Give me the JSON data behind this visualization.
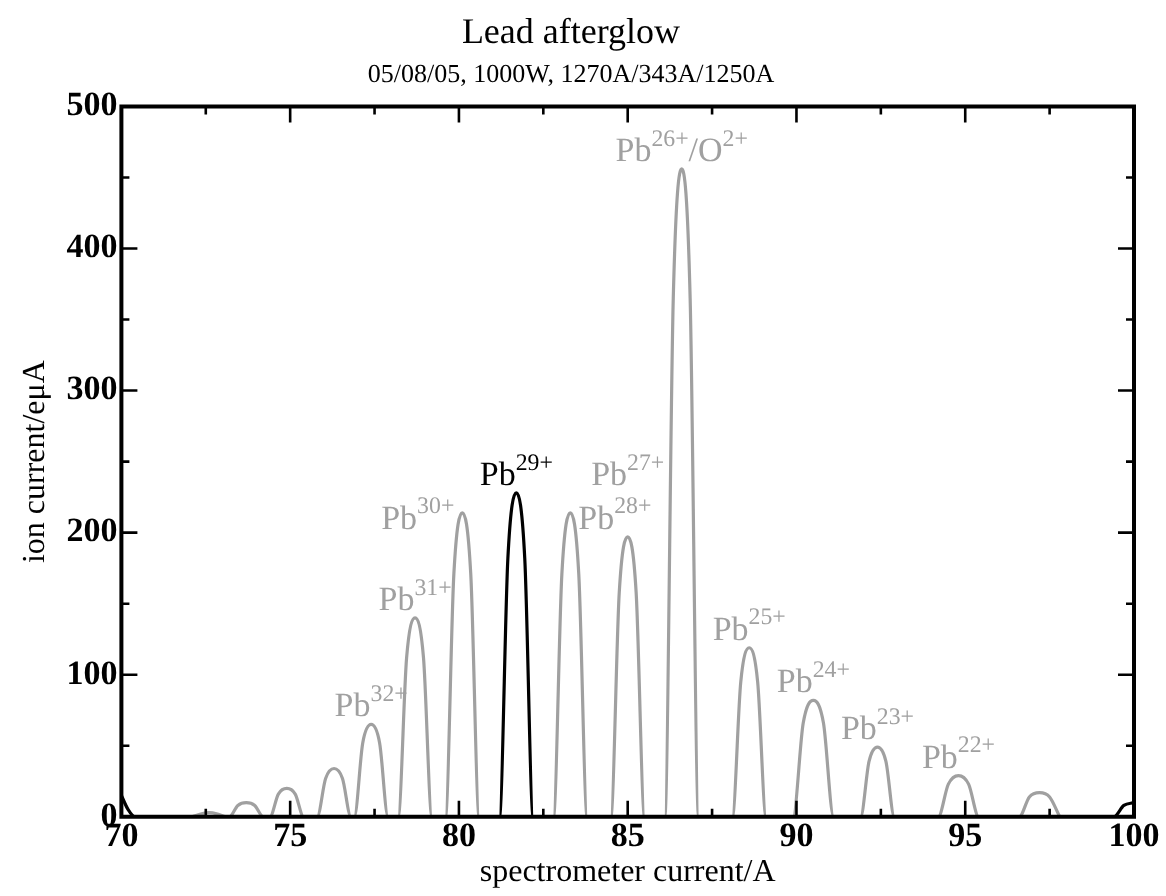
{
  "chart_data": {
    "type": "line",
    "title": "Lead afterglow",
    "subtitle": "05/08/05, 1000W, 1270A/343A/1250A",
    "xlabel": "spectrometer current/A",
    "ylabel": "ion current/eμA",
    "xlim": [
      70,
      100
    ],
    "xticks": [
      70,
      {
        "value": 72.5,
        "label": null
      },
      75,
      {
        "value": 77.5,
        "label": null
      },
      80,
      {
        "value": 82.5,
        "label": null
      },
      85,
      {
        "value": 87.5,
        "label": null
      },
      90,
      {
        "value": 92.5,
        "label": null
      },
      95,
      {
        "value": 97.5,
        "label": null
      },
      100
    ],
    "ylim": [
      0,
      500
    ],
    "yticks": [
      0,
      {
        "value": 50,
        "label": null
      },
      100,
      {
        "value": 150,
        "label": null
      },
      200,
      {
        "value": 250,
        "label": null
      },
      300,
      {
        "value": 350,
        "label": null
      },
      400,
      {
        "value": 450,
        "label": null
      },
      500
    ],
    "grid": false,
    "legend": false,
    "marker": "none",
    "line_style": "solid",
    "series": [
      {
        "color": "#a0a0a0",
        "x": [
          72.1,
          72.35,
          72.6,
          72.85,
          73.1,
          73.2,
          73.45,
          73.7,
          73.95,
          74.2,
          74.4,
          74.65,
          74.9,
          75.15,
          75.4,
          75.8,
          76.05,
          76.3,
          76.55,
          76.8,
          76.9,
          77.15,
          77.4,
          77.65,
          77.9,
          78.2,
          78.45,
          78.7,
          78.95,
          79.2,
          79.6,
          79.85,
          80.1,
          80.35,
          80.6,
          82.8,
          83.05,
          83.3,
          83.55,
          83.8,
          84.5,
          84.75,
          85.0,
          85.25,
          85.5,
          86.1,
          86.35,
          86.6,
          86.85,
          87.1,
          88.1,
          88.35,
          88.6,
          88.85,
          89.1,
          89.9,
          90.2,
          90.5,
          90.8,
          91.1,
          91.9,
          92.15,
          92.4,
          92.65,
          92.9,
          94.2,
          94.5,
          94.8,
          95.1,
          95.4,
          96.6,
          96.9,
          97.2,
          97.5,
          97.8
        ],
        "values": [
          0,
          2,
          3,
          2,
          0,
          0,
          8,
          10,
          8,
          0,
          0,
          16,
          20,
          16,
          0,
          0,
          27,
          34,
          27,
          0,
          0,
          52,
          65,
          52,
          0,
          0,
          112,
          140,
          112,
          0,
          0,
          171,
          214,
          171,
          0,
          0,
          171,
          214,
          171,
          0,
          0,
          158,
          197,
          158,
          0,
          0,
          365,
          456,
          365,
          0,
          0,
          95,
          119,
          95,
          0,
          0,
          66,
          82,
          66,
          0,
          0,
          39,
          49,
          39,
          0,
          0,
          23,
          29,
          23,
          0,
          0,
          14,
          17,
          14,
          0
        ]
      },
      {
        "color": "#000000",
        "x": [
          70,
          70.2,
          70.4,
          81.2,
          81.45,
          81.7,
          81.95,
          82.2,
          99.4,
          99.7,
          100
        ],
        "values": [
          15,
          5,
          0,
          0,
          182,
          228,
          182,
          0,
          0,
          8,
          10
        ]
      }
    ],
    "annotations": [
      {
        "text": "Pb$^{32+}$",
        "x": 77.4,
        "y": 65
      },
      {
        "text": "Pb$^{31+}$",
        "x": 78.7,
        "y": 140
      },
      {
        "text": "Pb$^{30+}$",
        "x": 80.1,
        "y": 214
      },
      {
        "text": "Pb$^{29+}$",
        "x": 81.7,
        "y": 228
      },
      {
        "text": "Pb$^{28+}$",
        "x": 83.3,
        "y": 214
      },
      {
        "text": "Pb$^{27+}$",
        "x": 85.0,
        "y": 197
      },
      {
        "text": "Pb$^{26+}$/O$^{2+}$",
        "x": 86.6,
        "y": 456
      },
      {
        "text": "Pb$^{25+}$",
        "x": 88.6,
        "y": 119
      },
      {
        "text": "Pb$^{24+}$",
        "x": 90.5,
        "y": 82
      },
      {
        "text": "Pb$^{23+}$",
        "x": 92.4,
        "y": 49
      },
      {
        "text": "Pb$^{22+}$",
        "x": 94.8,
        "y": 29
      }
    ]
  }
}
